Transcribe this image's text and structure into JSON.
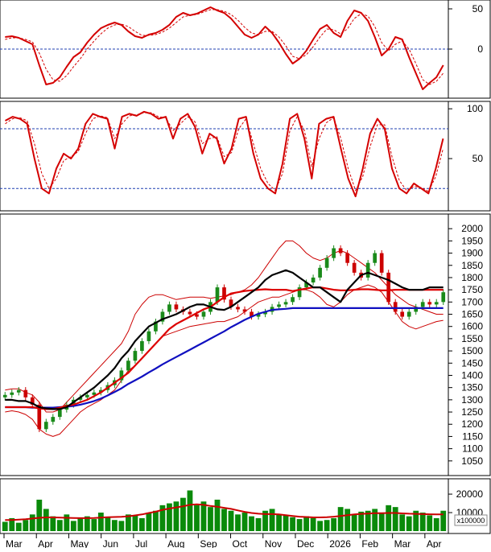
{
  "chart_data": [
    {
      "panel": "momentum-oscillator",
      "type": "line",
      "ylim": [
        -58,
        58
      ],
      "y_ticks": [
        50,
        0
      ],
      "reference_lines": [
        0
      ],
      "grid": false,
      "colors": {
        "line": "#d40000",
        "signal": "#d40000",
        "reference": "#1f3fb0"
      },
      "series": [
        {
          "values": [
            15,
            16,
            14,
            10,
            6,
            -20,
            -44,
            -42,
            -35,
            -22,
            -10,
            -4,
            8,
            18,
            26,
            30,
            33,
            30,
            22,
            16,
            14,
            18,
            20,
            24,
            30,
            40,
            45,
            42,
            44,
            48,
            52,
            48,
            45,
            38,
            28,
            18,
            14,
            18,
            28,
            20,
            8,
            -6,
            -18,
            -12,
            -2,
            12,
            25,
            30,
            20,
            15,
            35,
            48,
            45,
            35,
            15,
            -8,
            0,
            15,
            12,
            -10,
            -30,
            -50,
            -42,
            -35,
            -20
          ]
        },
        {
          "values": [
            12,
            14,
            14,
            12,
            9,
            -5,
            -25,
            -38,
            -40,
            -33,
            -22,
            -12,
            0,
            10,
            19,
            26,
            30,
            31,
            28,
            22,
            17,
            17,
            18,
            21,
            26,
            33,
            40,
            42,
            43,
            46,
            49,
            49,
            47,
            43,
            36,
            27,
            20,
            18,
            22,
            22,
            15,
            4,
            -9,
            -12,
            -7,
            3,
            15,
            25,
            24,
            19,
            25,
            38,
            44,
            41,
            28,
            8,
            -2,
            6,
            10,
            0,
            -18,
            -38,
            -44,
            -40,
            -30
          ]
        }
      ]
    },
    {
      "panel": "stochastic-oscillator",
      "type": "line",
      "ylim": [
        0,
        105
      ],
      "y_ticks": [
        100,
        50
      ],
      "reference_lines": [
        80,
        20
      ],
      "grid": false,
      "colors": {
        "line": "#d40000",
        "signal": "#d40000",
        "reference": "#1f3fb0"
      },
      "series": [
        {
          "values": [
            88,
            92,
            90,
            85,
            50,
            20,
            15,
            40,
            55,
            50,
            60,
            85,
            95,
            92,
            90,
            60,
            92,
            95,
            93,
            97,
            95,
            90,
            92,
            70,
            90,
            95,
            82,
            55,
            75,
            70,
            45,
            60,
            90,
            92,
            55,
            30,
            20,
            15,
            45,
            90,
            95,
            70,
            30,
            85,
            90,
            92,
            60,
            30,
            12,
            40,
            75,
            90,
            80,
            40,
            20,
            15,
            25,
            20,
            15,
            40,
            70
          ]
        },
        {
          "values": [
            85,
            90,
            91,
            88,
            65,
            35,
            20,
            30,
            48,
            52,
            57,
            75,
            90,
            93,
            91,
            70,
            85,
            93,
            94,
            96,
            96,
            92,
            91,
            78,
            85,
            92,
            87,
            65,
            70,
            72,
            52,
            56,
            80,
            90,
            65,
            40,
            25,
            18,
            35,
            78,
            92,
            78,
            42,
            70,
            86,
            91,
            70,
            40,
            18,
            32,
            62,
            84,
            84,
            52,
            28,
            18,
            22,
            21,
            17,
            32,
            60
          ]
        }
      ]
    },
    {
      "panel": "price",
      "type": "candlestick",
      "ylim": [
        1000,
        2050
      ],
      "y_ticks": [
        2000,
        1950,
        1900,
        1850,
        1800,
        1750,
        1700,
        1650,
        1600,
        1550,
        1500,
        1450,
        1400,
        1350,
        1300,
        1250,
        1200,
        1150,
        1100,
        1050
      ],
      "colors": {
        "up": "#1a8a1a",
        "down": "#cc0000",
        "ma_short": "#000000",
        "ma_mid": "#dd0000",
        "ma_long": "#1010c0",
        "bands": "#cc0000"
      },
      "close": [
        1320,
        1330,
        1340,
        1310,
        1280,
        1180,
        1210,
        1230,
        1260,
        1280,
        1300,
        1310,
        1320,
        1330,
        1340,
        1360,
        1380,
        1420,
        1460,
        1500,
        1540,
        1580,
        1620,
        1660,
        1690,
        1670,
        1660,
        1650,
        1640,
        1660,
        1700,
        1760,
        1710,
        1680,
        1670,
        1660,
        1640,
        1650,
        1660,
        1680,
        1690,
        1700,
        1720,
        1760,
        1780,
        1800,
        1840,
        1880,
        1920,
        1900,
        1860,
        1820,
        1800,
        1860,
        1900,
        1820,
        1700,
        1660,
        1640,
        1660,
        1680,
        1700,
        1690,
        1700,
        1740
      ],
      "ma_short": [
        1300,
        1300,
        1295,
        1295,
        1285,
        1270,
        1265,
        1262,
        1262,
        1270,
        1290,
        1310,
        1330,
        1350,
        1375,
        1400,
        1430,
        1470,
        1500,
        1540,
        1570,
        1600,
        1615,
        1630,
        1640,
        1650,
        1665,
        1680,
        1690,
        1690,
        1680,
        1670,
        1668,
        1680,
        1700,
        1720,
        1740,
        1760,
        1790,
        1810,
        1820,
        1830,
        1820,
        1800,
        1780,
        1760,
        1760,
        1740,
        1720,
        1700,
        1750,
        1780,
        1810,
        1820,
        1810,
        1800,
        1790,
        1775,
        1760,
        1750,
        1750,
        1750,
        1760,
        1760,
        1760
      ],
      "ma_mid": [
        1270,
        1270,
        1270,
        1270,
        1270,
        1265,
        1262,
        1262,
        1268,
        1275,
        1280,
        1290,
        1300,
        1315,
        1330,
        1350,
        1370,
        1390,
        1410,
        1440,
        1470,
        1500,
        1530,
        1560,
        1590,
        1610,
        1625,
        1640,
        1655,
        1670,
        1680,
        1700,
        1720,
        1735,
        1740,
        1745,
        1748,
        1750,
        1752,
        1750,
        1750,
        1750,
        1745,
        1750,
        1755,
        1760,
        1760,
        1755,
        1750,
        1748,
        1748,
        1750,
        1752,
        1752,
        1750,
        1748,
        1748,
        1750,
        1750,
        1750,
        1750,
        1750,
        1750,
        1750,
        1750
      ],
      "ma_long": [
        1270,
        1270,
        1270,
        1270,
        1268,
        1268,
        1268,
        1268,
        1270,
        1272,
        1275,
        1280,
        1287,
        1295,
        1305,
        1318,
        1332,
        1347,
        1365,
        1380,
        1395,
        1412,
        1428,
        1445,
        1460,
        1475,
        1490,
        1505,
        1520,
        1535,
        1550,
        1565,
        1580,
        1597,
        1612,
        1627,
        1640,
        1652,
        1660,
        1668,
        1670,
        1672,
        1675,
        1675,
        1675,
        1675,
        1675,
        1675,
        1675,
        1675,
        1675,
        1675,
        1675,
        1675,
        1675,
        1675,
        1675,
        1675,
        1675,
        1675,
        1675,
        1675,
        1675,
        1675,
        1675
      ],
      "band_upper": [
        1340,
        1345,
        1345,
        1330,
        1320,
        1290,
        1250,
        1250,
        1260,
        1290,
        1320,
        1350,
        1380,
        1410,
        1440,
        1470,
        1500,
        1530,
        1580,
        1650,
        1690,
        1720,
        1730,
        1730,
        1720,
        1710,
        1715,
        1720,
        1720,
        1720,
        1715,
        1720,
        1725,
        1730,
        1740,
        1750,
        1770,
        1800,
        1840,
        1880,
        1920,
        1950,
        1950,
        1930,
        1900,
        1880,
        1870,
        1880,
        1900,
        1910,
        1900,
        1880,
        1860,
        1840,
        1820,
        1790,
        1760,
        1730,
        1710,
        1690,
        1680,
        1670,
        1660,
        1650,
        1650
      ],
      "band_lower": [
        1250,
        1255,
        1250,
        1240,
        1220,
        1180,
        1160,
        1150,
        1160,
        1190,
        1220,
        1250,
        1270,
        1285,
        1300,
        1320,
        1340,
        1380,
        1420,
        1440,
        1470,
        1500,
        1530,
        1560,
        1570,
        1580,
        1590,
        1600,
        1605,
        1610,
        1615,
        1620,
        1620,
        1630,
        1640,
        1660,
        1680,
        1700,
        1710,
        1720,
        1720,
        1730,
        1740,
        1750,
        1750,
        1740,
        1720,
        1690,
        1680,
        1700,
        1730,
        1750,
        1760,
        1770,
        1760,
        1740,
        1700,
        1660,
        1620,
        1600,
        1590,
        1600,
        1610,
        1620,
        1625
      ]
    },
    {
      "panel": "volume",
      "type": "bar",
      "ylim": [
        0,
        27000
      ],
      "y_ticks": [
        20000,
        10000
      ],
      "unit_label": "x100000",
      "colors": {
        "bars": "#0a8a0a",
        "ma": "#cc0000"
      },
      "values": [
        5000,
        7000,
        4500,
        6000,
        9000,
        17000,
        12000,
        8000,
        6000,
        9000,
        5500,
        7000,
        8000,
        6500,
        10000,
        7500,
        6000,
        5500,
        9000,
        8500,
        7000,
        10000,
        11000,
        14000,
        15000,
        16000,
        18000,
        22000,
        14000,
        16000,
        13000,
        17000,
        12000,
        11000,
        9000,
        10000,
        8000,
        7000,
        11000,
        12000,
        9000,
        8500,
        7500,
        6500,
        8000,
        7000,
        5500,
        6000,
        7000,
        13000,
        12000,
        9000,
        10500,
        11000,
        12000,
        10000,
        14000,
        13000,
        9000,
        8000,
        11000,
        10000,
        8500,
        7000,
        11000
      ],
      "ma": [
        6000,
        6000,
        6200,
        6400,
        6800,
        7200,
        7400,
        7400,
        7300,
        7200,
        7100,
        7000,
        7000,
        7100,
        7300,
        7500,
        7600,
        7700,
        8000,
        8500,
        9000,
        9800,
        10500,
        11500,
        12200,
        12800,
        13400,
        14200,
        14500,
        14200,
        13600,
        13200,
        12600,
        12000,
        11200,
        10400,
        9800,
        9400,
        9200,
        9200,
        9000,
        8600,
        8200,
        7800,
        7600,
        7400,
        7400,
        7500,
        7800,
        8200,
        8600,
        9000,
        9300,
        9500,
        9700,
        9700,
        9800,
        9800,
        9600,
        9400,
        9300,
        9200,
        9100,
        9000,
        9000
      ]
    }
  ],
  "x_axis": {
    "tick_labels": [
      "Mar",
      "Apr",
      "May",
      "Jun",
      "Jul",
      "Aug",
      "Sep",
      "Oct",
      "Nov",
      "Dec",
      "2026",
      "Feb",
      "Mar",
      "Apr"
    ]
  }
}
